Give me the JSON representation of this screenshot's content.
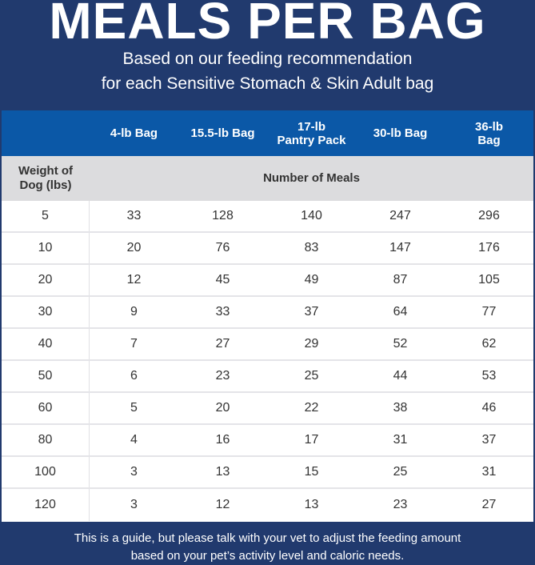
{
  "title": "MEALS PER BAG",
  "subtitle": [
    "Based on our feeding recommendation",
    "for each Sensitive Stomach & Skin Adult bag"
  ],
  "table": {
    "headers": [
      "4-lb Bag",
      "15.5-lb Bag",
      "17-lb\nPantry Pack",
      "30-lb Bag",
      "36-lb\nBag"
    ],
    "row_header": "Weight of\nDog (lbs)",
    "group_header": "Number of Meals",
    "rows": [
      [
        "5",
        "33",
        "128",
        "140",
        "247",
        "296"
      ],
      [
        "10",
        "20",
        "76",
        "83",
        "147",
        "176"
      ],
      [
        "20",
        "12",
        "45",
        "49",
        "87",
        "105"
      ],
      [
        "30",
        "9",
        "33",
        "37",
        "64",
        "77"
      ],
      [
        "40",
        "7",
        "27",
        "29",
        "52",
        "62"
      ],
      [
        "50",
        "6",
        "23",
        "25",
        "44",
        "53"
      ],
      [
        "60",
        "5",
        "20",
        "22",
        "38",
        "46"
      ],
      [
        "80",
        "4",
        "16",
        "17",
        "31",
        "37"
      ],
      [
        "100",
        "3",
        "13",
        "15",
        "25",
        "31"
      ],
      [
        "120",
        "3",
        "12",
        "13",
        "23",
        "27"
      ]
    ]
  },
  "footer": [
    "This is a guide, but please talk with your vet to adjust the feeding amount",
    "based on your pet’s activity level and caloric needs."
  ]
}
